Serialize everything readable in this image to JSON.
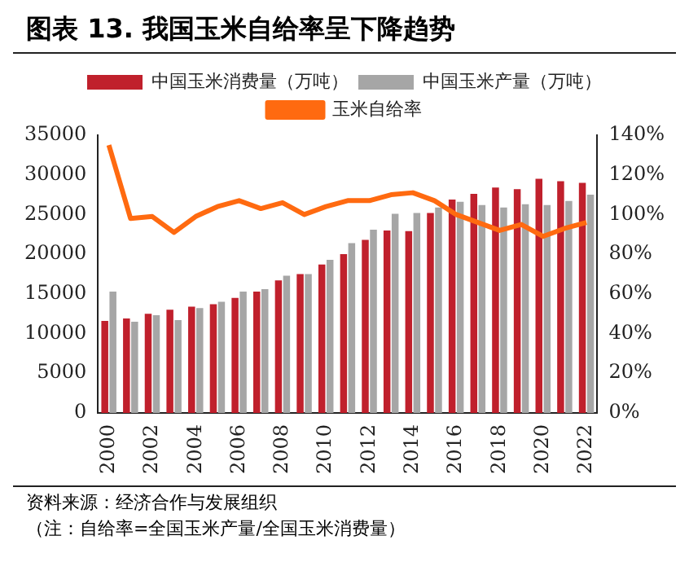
{
  "chart_data": {
    "type": "bar",
    "title": "图表 13. 我国玉米自给率呈下降趋势",
    "categories": [
      "2000",
      null,
      "2002",
      null,
      "2004",
      null,
      "2006",
      null,
      "2008",
      null,
      "2010",
      null,
      "2012",
      null,
      "2014",
      null,
      "2016",
      null,
      "2018",
      null,
      "2020",
      null,
      "2022"
    ],
    "series": [
      {
        "name": "中国玉米消费量（万吨）",
        "color": "#c0202c",
        "values": [
          11600,
          11900,
          12500,
          13000,
          13400,
          13700,
          14500,
          15300,
          16700,
          17500,
          18700,
          20000,
          21800,
          23000,
          22900,
          25200,
          26900,
          27600,
          28400,
          28200,
          29500,
          29200,
          29000
        ]
      },
      {
        "name": "中国玉米产量（万吨）",
        "color": "#a6a6a6",
        "values": [
          15300,
          11500,
          12300,
          11700,
          13200,
          14000,
          15300,
          15600,
          17300,
          17500,
          19300,
          21400,
          23100,
          25100,
          25200,
          25900,
          26600,
          26200,
          25900,
          26300,
          26200,
          26700,
          27500
        ]
      },
      {
        "name": "玉米自给率",
        "type": "line",
        "axis": "y2",
        "color": "#ff6a10",
        "values": [
          135,
          98,
          99,
          91,
          99,
          104,
          107,
          103,
          106,
          100,
          104,
          107,
          107,
          110,
          111,
          107,
          100,
          96,
          92,
          95,
          89,
          93,
          96
        ]
      }
    ],
    "ylim": [
      0,
      35000
    ],
    "yticks": [
      0,
      5000,
      10000,
      15000,
      20000,
      25000,
      30000,
      35000
    ],
    "y2lim": [
      0,
      140
    ],
    "y2ticks": [
      {
        "value": 0,
        "label": "0%"
      },
      {
        "value": 20,
        "label": "20%"
      },
      {
        "value": 40,
        "label": "40%"
      },
      {
        "value": 60,
        "label": "60%"
      },
      {
        "value": 80,
        "label": "80%"
      },
      {
        "value": 100,
        "label": "100%"
      },
      {
        "value": 120,
        "label": "120%"
      },
      {
        "value": 140,
        "label": "140%"
      }
    ],
    "legend": "top",
    "annotations": [
      "资料来源：经济合作与发展组织",
      "（注：自给率=全国玉米产量/全国玉米消费量）"
    ]
  }
}
